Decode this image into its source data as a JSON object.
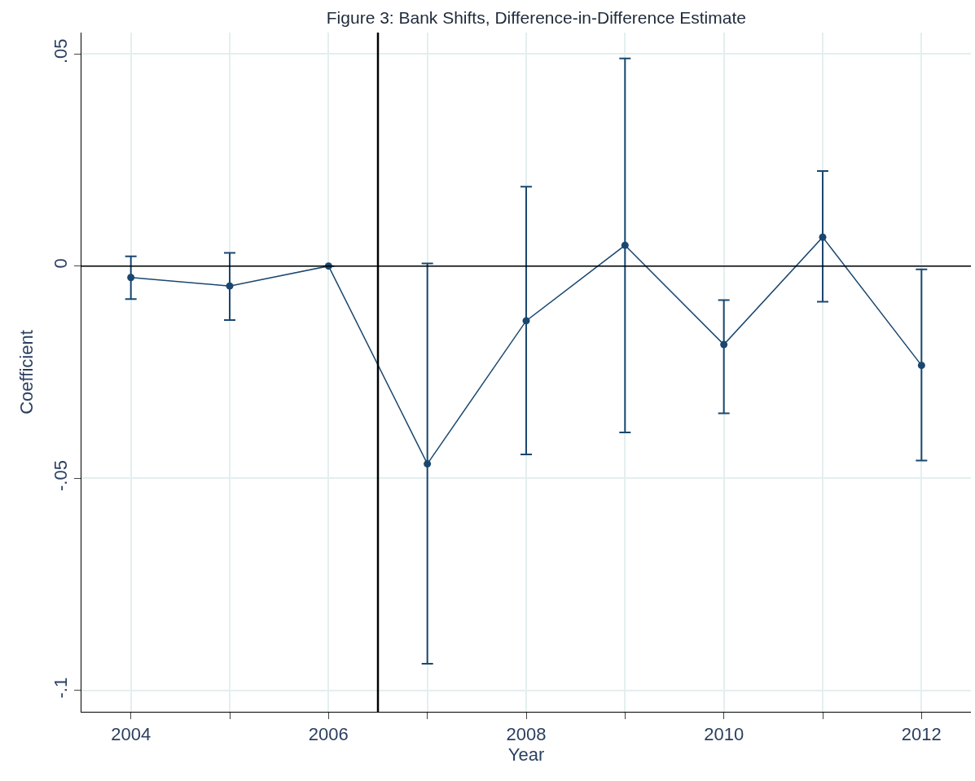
{
  "chart_data": {
    "type": "line",
    "title": "Figure 3: Bank Shifts, Difference-in-Difference Estimate",
    "xlabel": "Year",
    "ylabel": "Coefficient",
    "x": [
      2004,
      2005,
      2006,
      2007,
      2008,
      2009,
      2010,
      2011,
      2012
    ],
    "series": [
      {
        "color": "#1a476f",
        "values": [
          -0.0027,
          -0.0047,
          0,
          -0.0466,
          -0.0129,
          0.0049,
          -0.0185,
          0.0068,
          -0.0234
        ],
        "errors": [
          [
            -0.0078,
            0.0023
          ],
          [
            -0.0127,
            0.0031
          ],
          null,
          [
            -0.0937,
            0.0006
          ],
          [
            -0.0444,
            0.0187
          ],
          [
            -0.0392,
            0.0489
          ],
          [
            -0.0347,
            -0.008
          ],
          [
            -0.0084,
            0.0224
          ],
          [
            -0.0458,
            -0.0008
          ]
        ]
      }
    ],
    "xlim": [
      2003.5,
      2012.5
    ],
    "xticks": [
      2004,
      {
        "value": 2005,
        "label": null
      },
      2006,
      {
        "value": 2007,
        "label": null
      },
      2008,
      {
        "value": 2009,
        "label": null
      },
      2010,
      {
        "value": 2011,
        "label": null
      },
      2012
    ],
    "ylim": [
      -0.105,
      0.055
    ],
    "yticks": [
      {
        "value": -0.1,
        "label": "-.1"
      },
      {
        "value": -0.05,
        "label": "-.05"
      },
      0,
      {
        "value": 0.05,
        "label": ".05"
      }
    ],
    "ref_lines": [
      {
        "axis": "y",
        "value": 0,
        "color": "#000000"
      },
      {
        "axis": "x",
        "value": 2006.5,
        "color": "#000000"
      }
    ],
    "grid": true,
    "marker": "circle",
    "line_style": "solid"
  }
}
